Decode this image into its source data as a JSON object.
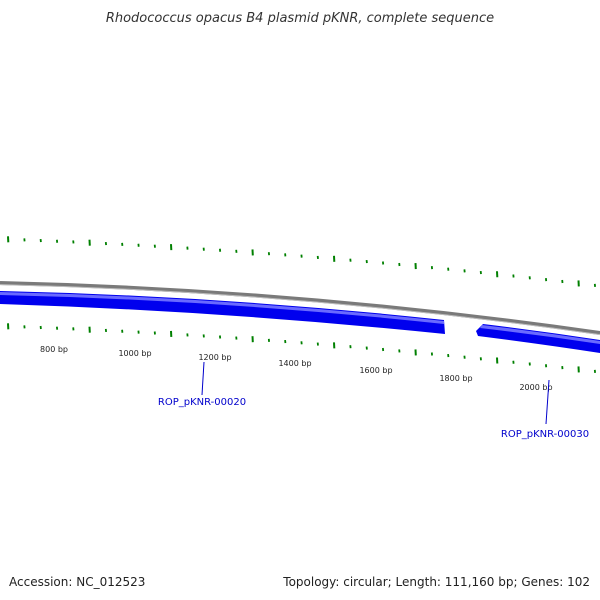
{
  "title": "Rhodococcus opacus B4 plasmid pKNR, complete sequence",
  "footer": {
    "accession": "Accession: NC_012523",
    "summary": "Topology: circular; Length: 111,160 bp; Genes: 102"
  },
  "colors": {
    "backbone": "#808080",
    "gene_forward": "#0000ee",
    "gene_highlight": "#6a6aff",
    "tick_mark": "#008000",
    "gene_label": "#0000cc",
    "scale_label": "#222222"
  },
  "scale_labels": [
    "800 bp",
    "1000 bp",
    "1200 bp",
    "1400 bp",
    "1600 bp",
    "1800 bp",
    "2000 bp"
  ],
  "genes": [
    {
      "label": "ROP_pKNR-00020"
    },
    {
      "label": "ROP_pKNR-00030"
    }
  ]
}
